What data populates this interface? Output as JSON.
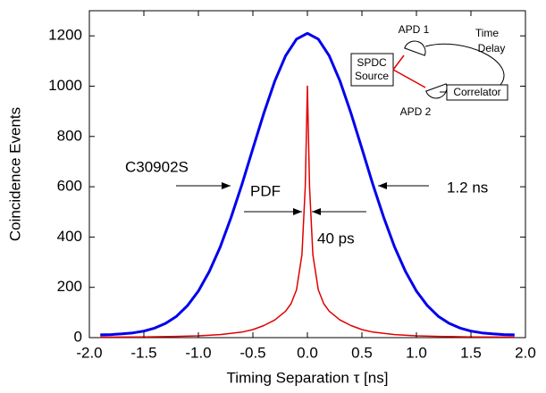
{
  "chart_data": {
    "type": "line",
    "xlabel": "Timing Separation τ [ns]",
    "ylabel": "Coincidence Events",
    "xlim": [
      -2,
      2
    ],
    "ylim": [
      0,
      1300
    ],
    "xticks": [
      {
        "value": -2,
        "label": "-2.0"
      },
      -1.5,
      {
        "value": -1,
        "label": "-1.0"
      },
      -0.5,
      {
        "value": 0,
        "label": "0.0"
      },
      0.5,
      {
        "value": 1,
        "label": "1.0"
      },
      1.5,
      {
        "value": 2,
        "label": "2.0"
      }
    ],
    "yticks": [
      0,
      200,
      400,
      600,
      800,
      1000,
      1200
    ],
    "series": [
      {
        "name": "C30902S",
        "color": "#0000ee",
        "x": [
          -1.9,
          -1.8,
          -1.7,
          -1.6,
          -1.5,
          -1.4,
          -1.3,
          -1.2,
          -1.1,
          -1.0,
          -0.9,
          -0.8,
          -0.7,
          -0.6,
          -0.5,
          -0.4,
          -0.3,
          -0.2,
          -0.1,
          0,
          0.1,
          0.2,
          0.3,
          0.4,
          0.5,
          0.6,
          0.7,
          0.8,
          0.9,
          1.0,
          1.1,
          1.2,
          1.3,
          1.4,
          1.5,
          1.6,
          1.7,
          1.8,
          1.9
        ],
        "values": [
          11,
          12,
          15,
          19,
          26,
          38,
          57,
          85,
          127,
          185,
          263,
          360,
          478,
          610,
          752,
          892,
          1019,
          1121,
          1187,
          1210,
          1187,
          1121,
          1019,
          892,
          752,
          610,
          478,
          360,
          263,
          185,
          127,
          85,
          57,
          38,
          26,
          19,
          15,
          12,
          11
        ]
      },
      {
        "name": "PDF",
        "color": "#e00000",
        "x": [
          -1.9,
          -1.5,
          -1.2,
          -1.0,
          -0.8,
          -0.6,
          -0.5,
          -0.4,
          -0.3,
          -0.2,
          -0.15,
          -0.1,
          -0.05,
          -0.02,
          0,
          0.02,
          0.05,
          0.1,
          0.15,
          0.2,
          0.3,
          0.4,
          0.5,
          0.6,
          0.8,
          1.0,
          1.2,
          1.5,
          1.9
        ],
        "values": [
          2,
          3,
          5,
          7,
          12,
          22,
          32,
          48,
          70,
          105,
          135,
          190,
          330,
          600,
          1000,
          600,
          330,
          190,
          135,
          105,
          70,
          48,
          32,
          22,
          12,
          7,
          5,
          3,
          2
        ]
      }
    ],
    "annotations": [
      "1.2 ns",
      "40 ps"
    ],
    "inset": {
      "source": [
        "SPDC",
        "Source"
      ],
      "apd1": "APD 1",
      "apd2": "APD 2",
      "delay": [
        "Time",
        "Delay"
      ],
      "correlator": "Correlator"
    }
  }
}
